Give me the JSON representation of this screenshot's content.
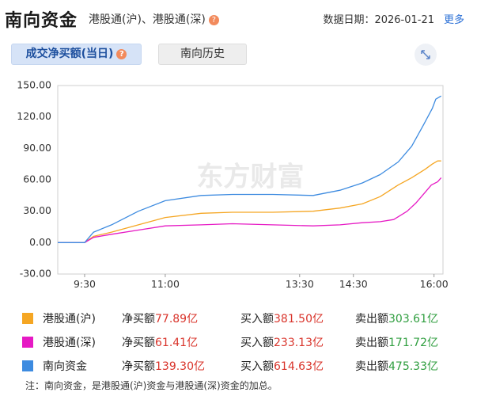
{
  "header": {
    "title": "南向资金",
    "subtitle": "港股通(沪)、港股通(深)",
    "date": "数据日期：2026-01-21",
    "more": "更多",
    "help": "?"
  },
  "tabs": [
    {
      "label": "成交净买额(当日)"
    },
    {
      "label": "南向历史"
    }
  ],
  "watermark": "东方财富",
  "legend": [
    {
      "name": "港股通(沪)",
      "color": "#f5a623",
      "net_label": "净买额",
      "net_value": "77.89亿",
      "buy_label": "买入额",
      "buy_value": "381.50亿",
      "sell_label": "卖出额",
      "sell_value": "303.61亿"
    },
    {
      "name": "港股通(深)",
      "color": "#e619c4",
      "net_label": "净买额",
      "net_value": "61.41亿",
      "buy_label": "买入额",
      "buy_value": "233.13亿",
      "sell_label": "卖出额",
      "sell_value": "171.72亿"
    },
    {
      "name": "南向资金",
      "color": "#3d8be0",
      "net_label": "净买额",
      "net_value": "139.30亿",
      "buy_label": "买入额",
      "buy_value": "614.63亿",
      "sell_label": "卖出额",
      "sell_value": "475.33亿"
    }
  ],
  "note": "注：南向资金，是港股通(沪)资金与港股通(深)资金的加总。",
  "chart_data": {
    "type": "line",
    "ylim": [
      -30,
      150
    ],
    "yticks": [
      "150.00",
      "120.00",
      "90.00",
      "60.00",
      "30.00",
      "0.00",
      "-30.00"
    ],
    "ytick_values": [
      150,
      120,
      90,
      60,
      30,
      0,
      -30
    ],
    "xlim": [
      "09:00",
      "16:10"
    ],
    "xticks": [
      {
        "label": "9:30",
        "time": "09:30"
      },
      {
        "label": "11:00",
        "time": "11:00"
      },
      {
        "label": "13:30",
        "time": "13:30"
      },
      {
        "label": "14:30",
        "time": "14:30"
      },
      {
        "label": "16:00",
        "time": "16:00"
      }
    ],
    "grid": false,
    "series": [
      {
        "name": "港股通(沪)",
        "color": "#f5a623",
        "points": [
          [
            "09:00",
            0
          ],
          [
            "09:30",
            0
          ],
          [
            "09:40",
            6
          ],
          [
            "10:00",
            10
          ],
          [
            "10:30",
            17
          ],
          [
            "11:00",
            24
          ],
          [
            "11:40",
            28
          ],
          [
            "12:15",
            29
          ],
          [
            "13:00",
            29
          ],
          [
            "13:45",
            30
          ],
          [
            "14:15",
            33
          ],
          [
            "14:40",
            37
          ],
          [
            "15:00",
            44
          ],
          [
            "15:20",
            55
          ],
          [
            "15:35",
            62
          ],
          [
            "15:50",
            70
          ],
          [
            "15:58",
            75
          ],
          [
            "16:04",
            78
          ],
          [
            "16:08",
            78
          ]
        ]
      },
      {
        "name": "港股通(深)",
        "color": "#e619c4",
        "points": [
          [
            "09:00",
            0
          ],
          [
            "09:30",
            0
          ],
          [
            "09:40",
            5
          ],
          [
            "10:00",
            8
          ],
          [
            "10:30",
            12
          ],
          [
            "11:00",
            16
          ],
          [
            "11:40",
            17
          ],
          [
            "12:15",
            18
          ],
          [
            "13:00",
            17
          ],
          [
            "13:45",
            16
          ],
          [
            "14:15",
            17
          ],
          [
            "14:40",
            19
          ],
          [
            "15:00",
            20
          ],
          [
            "15:15",
            22
          ],
          [
            "15:30",
            30
          ],
          [
            "15:40",
            38
          ],
          [
            "15:50",
            48
          ],
          [
            "15:57",
            55
          ],
          [
            "16:04",
            58
          ],
          [
            "16:08",
            62
          ]
        ]
      },
      {
        "name": "南向资金",
        "color": "#3d8be0",
        "points": [
          [
            "09:00",
            0
          ],
          [
            "09:30",
            0
          ],
          [
            "09:40",
            10
          ],
          [
            "10:00",
            17
          ],
          [
            "10:30",
            30
          ],
          [
            "11:00",
            40
          ],
          [
            "11:40",
            45
          ],
          [
            "12:15",
            46
          ],
          [
            "13:00",
            46
          ],
          [
            "13:45",
            45
          ],
          [
            "14:15",
            50
          ],
          [
            "14:40",
            57
          ],
          [
            "15:00",
            65
          ],
          [
            "15:20",
            77
          ],
          [
            "15:35",
            92
          ],
          [
            "15:48",
            112
          ],
          [
            "15:58",
            128
          ],
          [
            "16:02",
            137
          ],
          [
            "16:08",
            140
          ]
        ]
      }
    ]
  }
}
